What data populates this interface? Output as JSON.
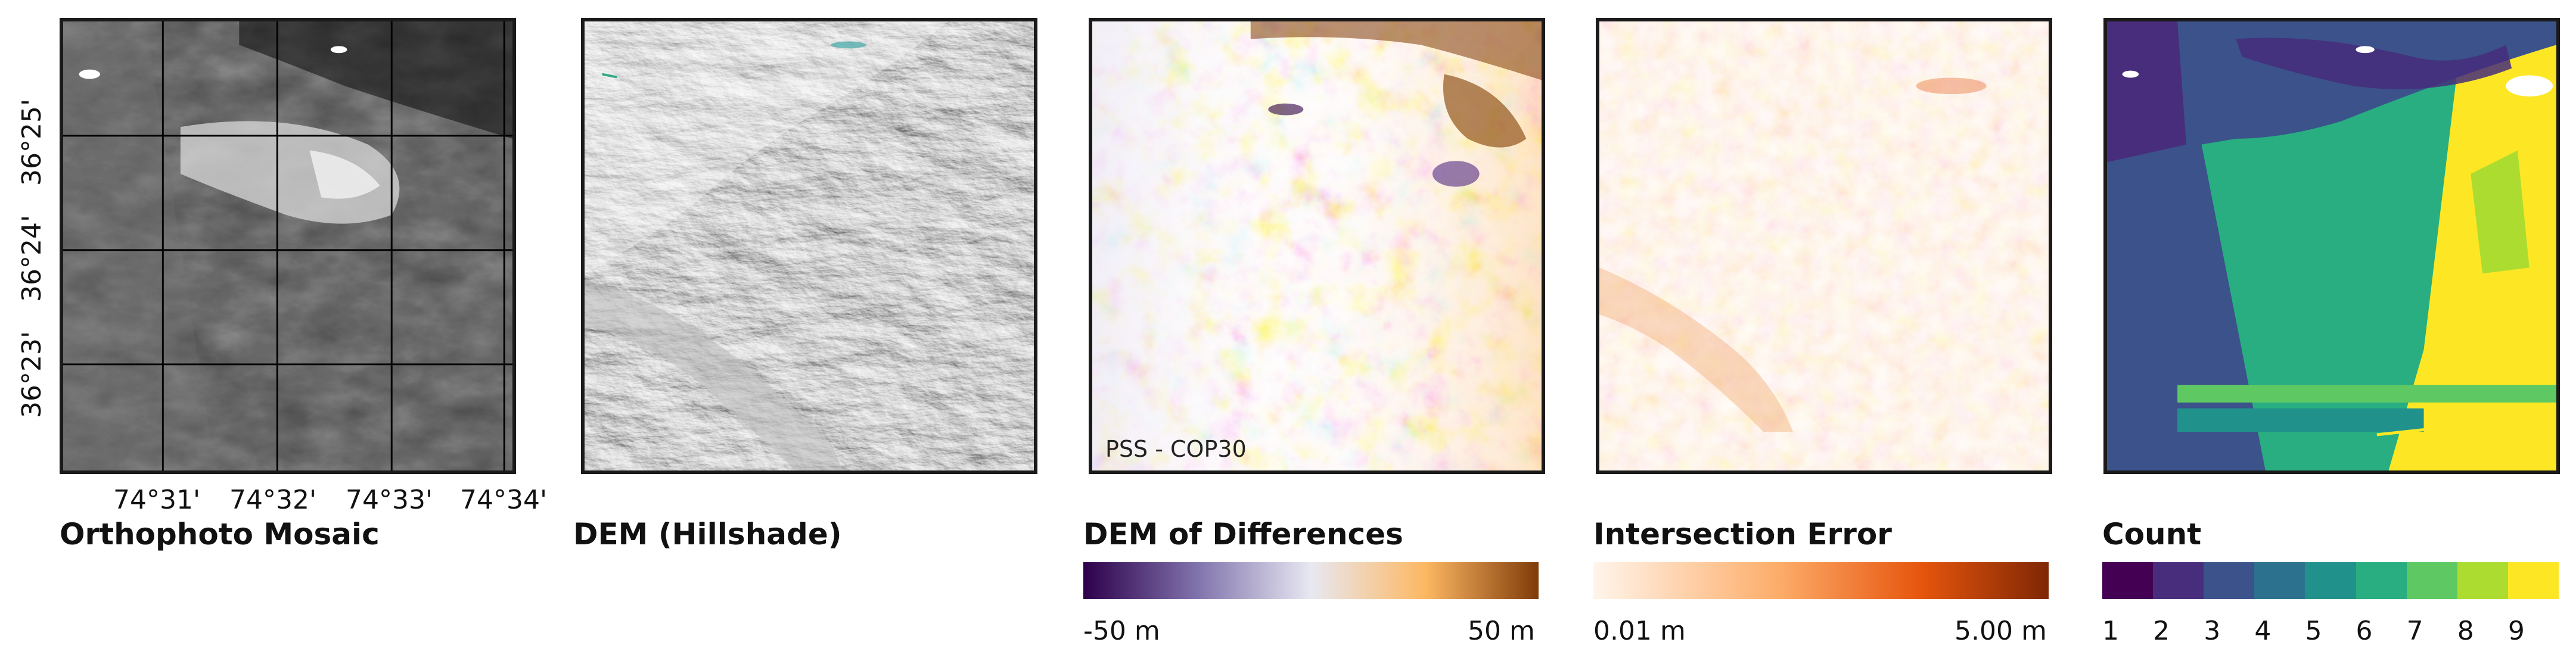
{
  "panels": [
    {
      "title": "Orthophoto Mosaic",
      "x_ticks": [
        "74°31'",
        "74°32'",
        "74°33'",
        "74°34'"
      ],
      "y_ticks": [
        "36°25'",
        "36°24'",
        "36°23'"
      ]
    },
    {
      "title": "DEM (Hillshade)"
    },
    {
      "title": "DEM of Differences",
      "annotation": "PSS - COP30",
      "colorbar": {
        "min_label": "-50 m",
        "max_label": "50 m",
        "colormap": "PuOr diverging",
        "colors": [
          "#2d004b",
          "#8073ac",
          "#e8e8f2",
          "#fdb863",
          "#7f3b08"
        ]
      }
    },
    {
      "title": "Intersection Error",
      "colorbar": {
        "min_label": "0.01 m",
        "max_label": "5.00 m",
        "colormap": "Oranges",
        "colors": [
          "#fff5eb",
          "#fdae6b",
          "#e6550d",
          "#7f2704"
        ]
      }
    },
    {
      "title": "Count",
      "colorbar": {
        "labels": [
          "1",
          "2",
          "3",
          "4",
          "5",
          "6",
          "7",
          "8",
          "9"
        ],
        "colors": [
          "#440154",
          "#472d7b",
          "#3b528b",
          "#2c728e",
          "#21918c",
          "#28ae80",
          "#5ec962",
          "#addc30",
          "#fde725"
        ]
      }
    }
  ]
}
